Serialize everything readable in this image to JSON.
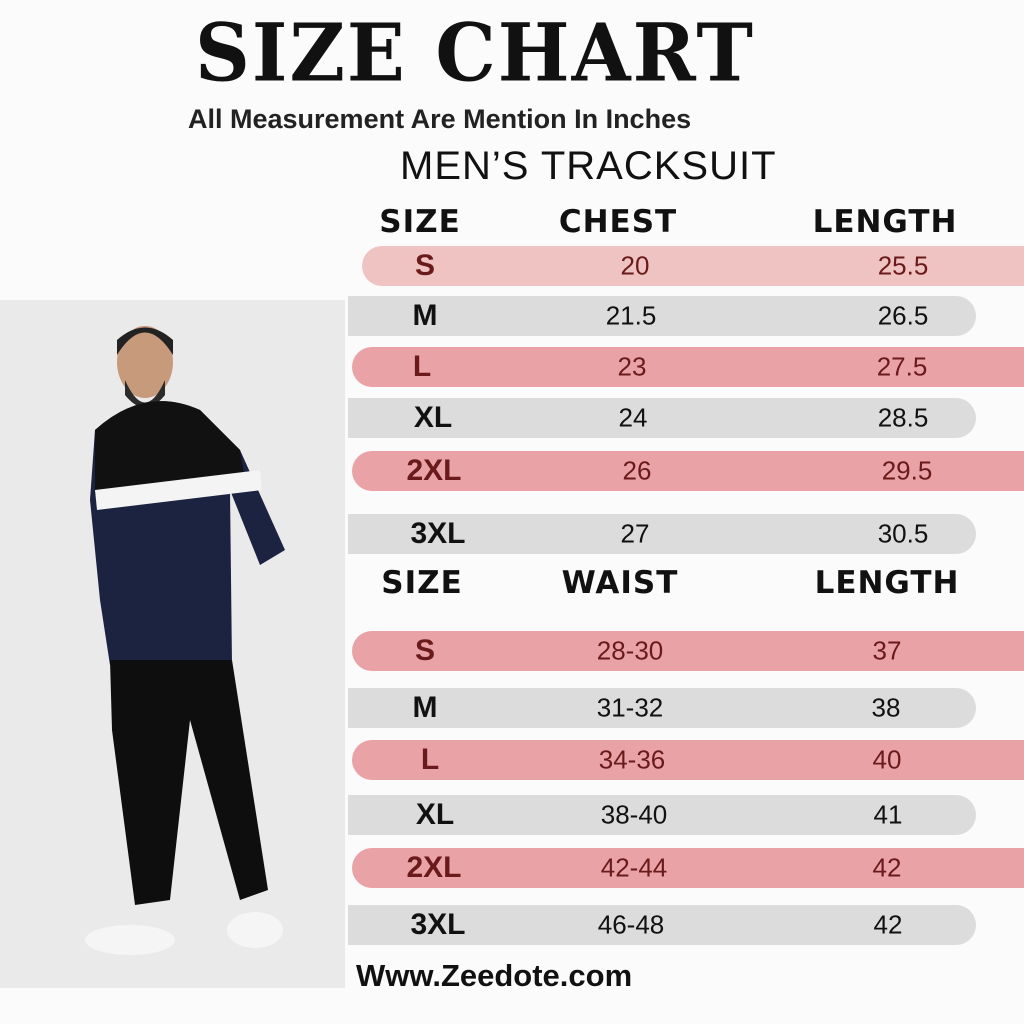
{
  "title": "SIZE CHART",
  "subtitle": "All Measurement Are Mention In Inches",
  "product": "MEN’S TRACKSUIT",
  "colors": {
    "pink": "#e9a3a6",
    "light_pink": "#f0c3c3",
    "gray": "#dcdcdc"
  },
  "top_table": {
    "headers": [
      "SIZE",
      "CHEST",
      "LENGTH"
    ],
    "rows": [
      [
        "S",
        "20",
        "25.5"
      ],
      [
        "M",
        "21.5",
        "26.5"
      ],
      [
        "L",
        "23",
        "27.5"
      ],
      [
        "XL",
        "24",
        "28.5"
      ],
      [
        "2XL",
        "26",
        "29.5"
      ],
      [
        "3XL",
        "27",
        "30.5"
      ]
    ]
  },
  "bottom_table": {
    "headers": [
      "SIZE",
      "WAIST",
      "LENGTH"
    ],
    "rows": [
      [
        "S",
        "28-30",
        "37"
      ],
      [
        "M",
        "31-32",
        "38"
      ],
      [
        "L",
        "34-36",
        "40"
      ],
      [
        "XL",
        "38-40",
        "41"
      ],
      [
        "2XL",
        "42-44",
        "42"
      ],
      [
        "3XL",
        "46-48",
        "42"
      ]
    ]
  },
  "website": "Www.Zeedote.com"
}
